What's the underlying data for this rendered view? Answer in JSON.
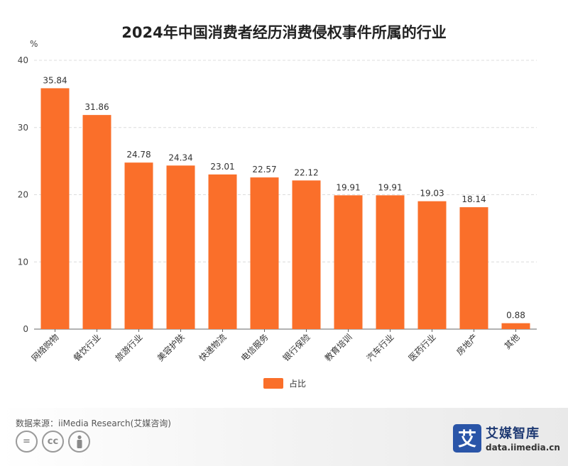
{
  "title": "2024年中国消费者经历消费侵权事件所属的行业",
  "chart_data": {
    "type": "bar",
    "title": "2024年中国消费者经历消费侵权事件所属的行业",
    "y_unit": "%",
    "ylim": [
      0,
      40
    ],
    "yticks": [
      0,
      10,
      20,
      30,
      40
    ],
    "grid": true,
    "legend_position": "bottom",
    "color": "#fa6f2a",
    "categories": [
      "网络购物",
      "餐饮行业",
      "旅游行业",
      "美容护肤",
      "快递物流",
      "电信服务",
      "银行保险",
      "教育培训",
      "汽车行业",
      "医药行业",
      "房地产",
      "其他"
    ],
    "series": [
      {
        "name": "占比",
        "values": [
          35.84,
          31.86,
          24.78,
          24.34,
          23.01,
          22.57,
          22.12,
          19.91,
          19.91,
          19.03,
          18.14,
          0.88
        ]
      }
    ]
  },
  "footer": {
    "source": "数据来源：iiMedia Research(艾媒咨询)",
    "cc_icons": [
      "=",
      "cc",
      "person-icon"
    ],
    "brand_logo_char": "艾",
    "brand_name": "艾媒智库",
    "brand_url": "data.iimedia.cn"
  }
}
